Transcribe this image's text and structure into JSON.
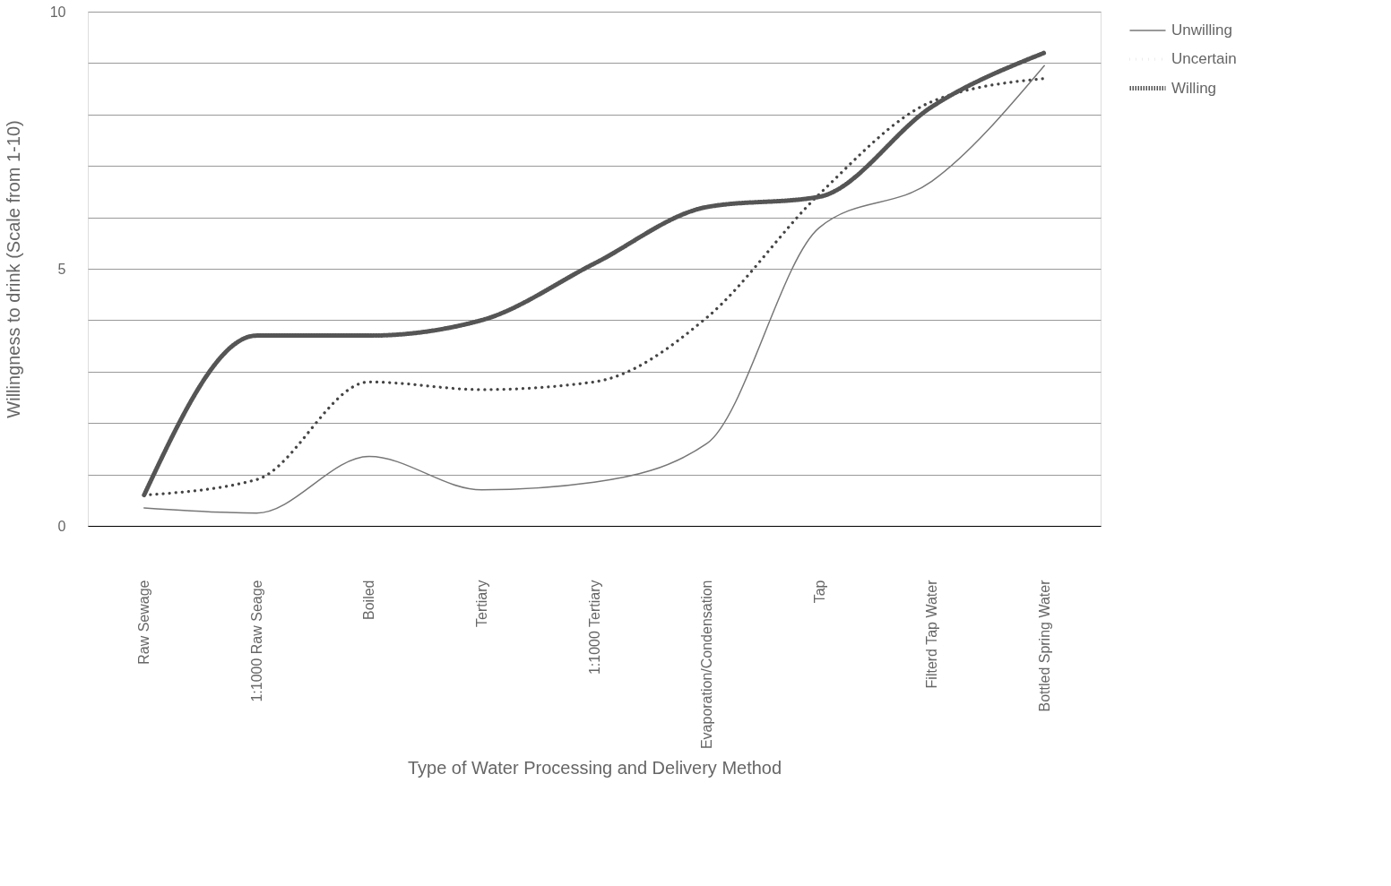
{
  "chart_data": {
    "type": "line",
    "xlabel": "Type of Water Processing and Delivery Method",
    "ylabel": "Willingness to drink (Scale from 1-10)",
    "categories": [
      "Raw Sewage",
      "1:1000 Raw Seage",
      "Boiled",
      "Tertiary",
      "1:1000 Tertiary",
      "Evaporation/Condensation",
      "Tap",
      "Filterd Tap Water",
      "Bottled Spring Water"
    ],
    "series": [
      {
        "name": "Unwilling",
        "color": "#777777",
        "line_style": "solid",
        "values": [
          0.35,
          0.25,
          1.35,
          0.7,
          0.85,
          1.6,
          5.8,
          6.7,
          8.95
        ]
      },
      {
        "name": "Uncertain",
        "color": "#444444",
        "line_style": "dotted",
        "values": [
          0.6,
          0.9,
          2.8,
          2.65,
          2.8,
          4.05,
          6.45,
          8.25,
          8.7
        ]
      },
      {
        "name": "Willing",
        "color": "#555555",
        "line_style": "dashed",
        "values": [
          0.6,
          3.7,
          3.7,
          4.0,
          5.1,
          6.2,
          6.4,
          8.15,
          9.2
        ]
      }
    ],
    "ylim": [
      0,
      10
    ],
    "yticks": [
      0,
      {
        "value": 1,
        "label": null
      },
      {
        "value": 2,
        "label": null
      },
      {
        "value": 3,
        "label": null
      },
      {
        "value": 4,
        "label": null
      },
      5,
      {
        "value": 6,
        "label": null
      },
      {
        "value": 7,
        "label": null
      },
      {
        "value": 8,
        "label": null
      },
      {
        "value": 9,
        "label": null
      },
      10
    ],
    "grid": "y",
    "legend": "right",
    "marker": "none"
  }
}
